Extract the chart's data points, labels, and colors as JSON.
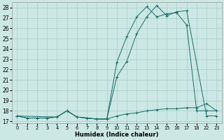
{
  "xlabel": "Humidex (Indice chaleur)",
  "bg_color": "#cce8e4",
  "grid_color": "#aaccca",
  "line_color": "#1a6b6b",
  "yticks": [
    17,
    18,
    19,
    20,
    21,
    22,
    23,
    24,
    25,
    26,
    27,
    28
  ],
  "ylim": [
    16.8,
    28.5
  ],
  "xlim": [
    -0.5,
    20.5
  ],
  "x_tick_positions": [
    0,
    1,
    2,
    3,
    4,
    5,
    6,
    7,
    8,
    9,
    10,
    11,
    12,
    13,
    14,
    15,
    16,
    17,
    18,
    19,
    20
  ],
  "x_tick_labels": [
    "0",
    "1",
    "2",
    "3",
    "4",
    "5",
    "6",
    "7",
    "8",
    "9",
    "10",
    "11",
    "12",
    "13",
    "14",
    "15",
    "16",
    "17",
    "18",
    "22",
    "23"
  ],
  "line1_xi": [
    0,
    1,
    2,
    3,
    4,
    5,
    6,
    7,
    8,
    9,
    10,
    11,
    12,
    13,
    14,
    15,
    16,
    17,
    18,
    19,
    20
  ],
  "line1_y": [
    17.5,
    17.3,
    17.3,
    17.3,
    17.4,
    18.0,
    17.4,
    17.3,
    17.2,
    17.2,
    17.5,
    17.7,
    17.8,
    18.0,
    18.1,
    18.2,
    18.2,
    18.3,
    18.3,
    18.7,
    18.0
  ],
  "line2_xi": [
    0,
    1,
    2,
    3,
    4,
    5,
    6,
    7,
    8,
    9,
    10,
    11,
    12,
    13,
    14,
    15,
    16,
    17,
    18,
    19,
    20
  ],
  "line2_y": [
    17.5,
    17.3,
    17.3,
    17.3,
    17.4,
    18.0,
    17.4,
    17.3,
    17.2,
    17.2,
    22.7,
    25.2,
    27.1,
    28.1,
    27.1,
    27.4,
    27.5,
    26.3,
    18.0,
    18.0,
    18.0
  ],
  "line3_xi": [
    0,
    4,
    5,
    6,
    7,
    8,
    9,
    10,
    11,
    12,
    13,
    14,
    15,
    16,
    17,
    19,
    20
  ],
  "line3_y": [
    17.5,
    17.4,
    18.0,
    17.4,
    17.3,
    17.2,
    17.2,
    21.3,
    22.8,
    25.5,
    27.1,
    28.2,
    27.2,
    27.6,
    27.7,
    17.5,
    17.5
  ]
}
